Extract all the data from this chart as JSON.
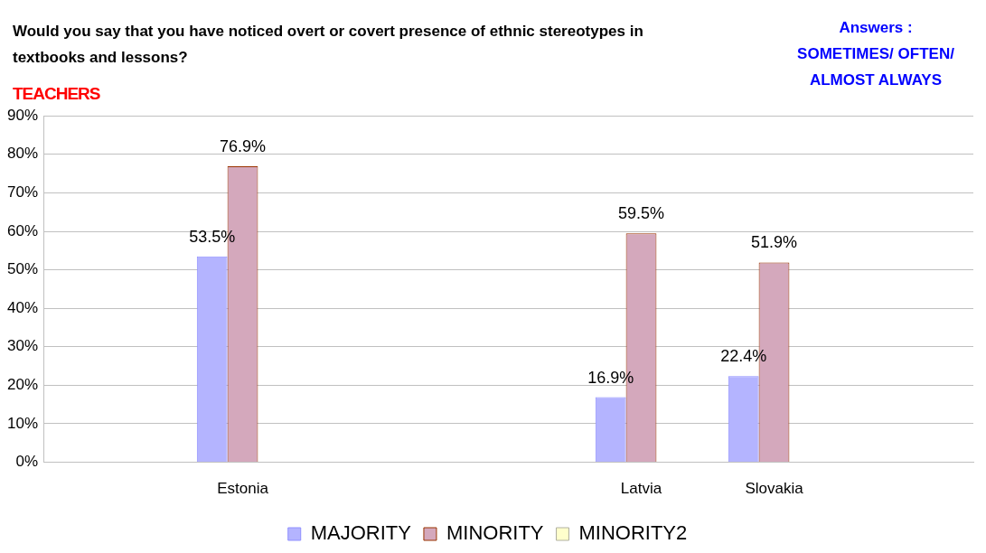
{
  "chart_data": {
    "type": "bar",
    "title": "Would you say that you have noticed overt or covert presence of ethnic stereotypes in textbooks and lessons?",
    "subtitle": "TEACHERS",
    "annotations": [
      "Answers :\nSOMETIMES/ OFTEN/\nALMOST ALWAYS"
    ],
    "categories": [
      null,
      "Estonia",
      null,
      null,
      "Latvia",
      "Slovakia",
      null
    ],
    "series": [
      {
        "name": "MAJORITY",
        "color": "#b4b4ff",
        "values": [
          null,
          53.5,
          null,
          null,
          16.9,
          22.4,
          null
        ],
        "value_labels": [
          null,
          "53.5%",
          null,
          null,
          "16.9%",
          "22.4%",
          null
        ]
      },
      {
        "name": "MINORITY",
        "color": "#d4a8bc",
        "values": [
          null,
          76.9,
          null,
          null,
          59.5,
          51.9,
          null
        ],
        "value_labels": [
          null,
          "76.9%",
          null,
          null,
          "59.5%",
          "51.9%",
          null
        ]
      },
      {
        "name": "MINORITY2",
        "color": "#ffffcc",
        "values": [
          null,
          null,
          null,
          null,
          null,
          null,
          null
        ]
      }
    ],
    "ylim": [
      0,
      90
    ],
    "yticks": [
      {
        "value": 0,
        "label": "0%"
      },
      {
        "value": 10,
        "label": "10%"
      },
      {
        "value": 20,
        "label": "20%"
      },
      {
        "value": 30,
        "label": "30%"
      },
      {
        "value": 40,
        "label": "40%"
      },
      {
        "value": 50,
        "label": "50%"
      },
      {
        "value": 60,
        "label": "60%"
      },
      {
        "value": 70,
        "label": "70%"
      },
      {
        "value": 80,
        "label": "80%"
      },
      {
        "value": 90,
        "label": "90%"
      }
    ],
    "grid": "y",
    "legend": "bottom"
  }
}
